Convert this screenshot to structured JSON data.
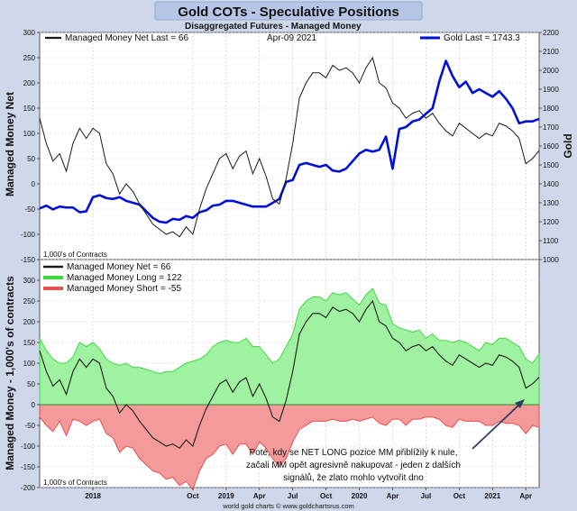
{
  "title": "Gold COTs - Speculative Positions",
  "subtitle_left": "Disaggregated Futures - Managed Money",
  "subtitle_date": "Apr-09  2021",
  "footer": "world gold charts © www.goldchartsrus.com",
  "colors": {
    "title_bg": "#b7c6e7",
    "frame": "#cfd8ea",
    "net": "#1a1a1a",
    "gold": "#0010d8",
    "long_fill": "#9ff29f",
    "long_line": "#3fd83f",
    "short_fill": "#f49a9a",
    "short_line": "#e85050",
    "arrow": "#2c3e60"
  },
  "chart_data": [
    {
      "type": "line",
      "title": "Managed Money Net vs Gold",
      "ylabel": "Managed Money Net",
      "y2label": "Gold",
      "ylim": [
        -150,
        300
      ],
      "y2lim": [
        1000,
        2200
      ],
      "yticks": [
        -150,
        -100,
        -50,
        0,
        50,
        100,
        150,
        200,
        250,
        300
      ],
      "y2ticks": [
        1000,
        1100,
        1200,
        1300,
        1400,
        1500,
        1600,
        1700,
        1800,
        1900,
        2000,
        2100,
        2200
      ],
      "units_note": "1,000's of Contracts",
      "legend_net": "Managed Money Net   Last = 66",
      "legend_gold": "Gold Last = 1743.3",
      "x_range": [
        2017.6,
        2021.35
      ],
      "series": [
        {
          "name": "Managed Money Net",
          "x": [
            2017.6,
            2017.65,
            2017.7,
            2017.75,
            2017.8,
            2017.85,
            2017.9,
            2017.95,
            2018.0,
            2018.05,
            2018.1,
            2018.15,
            2018.2,
            2018.25,
            2018.3,
            2018.35,
            2018.4,
            2018.45,
            2018.5,
            2018.55,
            2018.6,
            2018.65,
            2018.7,
            2018.75,
            2018.8,
            2018.85,
            2018.9,
            2018.95,
            2019.0,
            2019.05,
            2019.1,
            2019.15,
            2019.2,
            2019.25,
            2019.3,
            2019.35,
            2019.4,
            2019.45,
            2019.5,
            2019.55,
            2019.6,
            2019.65,
            2019.7,
            2019.75,
            2019.8,
            2019.85,
            2019.9,
            2019.95,
            2020.0,
            2020.05,
            2020.1,
            2020.15,
            2020.2,
            2020.25,
            2020.3,
            2020.35,
            2020.4,
            2020.45,
            2020.5,
            2020.55,
            2020.6,
            2020.65,
            2020.7,
            2020.75,
            2020.8,
            2020.85,
            2020.9,
            2020.95,
            2021.0,
            2021.05,
            2021.1,
            2021.15,
            2021.2,
            2021.25,
            2021.3,
            2021.35
          ],
          "values": [
            130,
            80,
            45,
            60,
            25,
            80,
            110,
            90,
            110,
            100,
            40,
            20,
            -20,
            0,
            -15,
            -40,
            -60,
            -80,
            -90,
            -100,
            -95,
            -105,
            -85,
            -100,
            -50,
            -10,
            20,
            50,
            60,
            30,
            55,
            65,
            20,
            50,
            15,
            -30,
            -40,
            10,
            80,
            170,
            200,
            220,
            220,
            210,
            235,
            225,
            230,
            220,
            200,
            230,
            250,
            200,
            190,
            160,
            150,
            130,
            140,
            145,
            130,
            140,
            120,
            105,
            95,
            120,
            110,
            100,
            90,
            100,
            95,
            120,
            115,
            105,
            90,
            40,
            50,
            66
          ]
        },
        {
          "name": "Gold",
          "axis": "right",
          "x": [
            2017.6,
            2017.65,
            2017.7,
            2017.75,
            2017.8,
            2017.85,
            2017.9,
            2017.95,
            2018.0,
            2018.05,
            2018.1,
            2018.15,
            2018.2,
            2018.25,
            2018.3,
            2018.35,
            2018.4,
            2018.45,
            2018.5,
            2018.55,
            2018.6,
            2018.65,
            2018.7,
            2018.75,
            2018.8,
            2018.85,
            2018.9,
            2018.95,
            2019.0,
            2019.05,
            2019.1,
            2019.15,
            2019.2,
            2019.25,
            2019.3,
            2019.35,
            2019.4,
            2019.45,
            2019.5,
            2019.55,
            2019.6,
            2019.65,
            2019.7,
            2019.75,
            2019.8,
            2019.85,
            2019.9,
            2019.95,
            2020.0,
            2020.05,
            2020.1,
            2020.15,
            2020.2,
            2020.25,
            2020.3,
            2020.35,
            2020.4,
            2020.45,
            2020.5,
            2020.55,
            2020.6,
            2020.65,
            2020.7,
            2020.75,
            2020.8,
            2020.85,
            2020.9,
            2020.95,
            2021.0,
            2021.05,
            2021.1,
            2021.15,
            2021.2,
            2021.25,
            2021.3,
            2021.35
          ],
          "values": [
            1270,
            1285,
            1265,
            1280,
            1275,
            1275,
            1250,
            1255,
            1330,
            1340,
            1325,
            1320,
            1330,
            1310,
            1300,
            1290,
            1255,
            1220,
            1200,
            1195,
            1215,
            1210,
            1230,
            1220,
            1250,
            1260,
            1285,
            1290,
            1310,
            1310,
            1300,
            1290,
            1280,
            1280,
            1280,
            1300,
            1320,
            1410,
            1420,
            1500,
            1510,
            1500,
            1490,
            1500,
            1470,
            1465,
            1480,
            1520,
            1560,
            1580,
            1570,
            1580,
            1650,
            1480,
            1690,
            1700,
            1730,
            1740,
            1770,
            1800,
            1940,
            2050,
            1970,
            1910,
            1940,
            1880,
            1900,
            1880,
            1860,
            1890,
            1850,
            1800,
            1720,
            1730,
            1730,
            1743.3
          ]
        }
      ]
    },
    {
      "type": "area",
      "title": "Managed Money Net / Long / Short",
      "ylabel": "Managed Money - 1,000's of contracts",
      "ylim": [
        -200,
        350
      ],
      "yticks": [
        -200,
        -150,
        -100,
        -50,
        0,
        50,
        100,
        150,
        200,
        250,
        300
      ],
      "units_note": "1,000's of Contracts",
      "legend": [
        "Managed Money Net      =  66",
        "Managed Money Long    =  122",
        "Managed Money Short    =  -55"
      ],
      "x_ticks": [
        2018,
        2018.75,
        2019,
        2019.25,
        2019.5,
        2019.75,
        2020,
        2020.25,
        2020.5,
        2020.75,
        2021,
        2021.25
      ],
      "x_tick_labels": [
        "2018",
        "Oct",
        "2019",
        "Apr",
        "Jul",
        "Oct",
        "2020",
        "Apr",
        "Jul",
        "Oct",
        "2021",
        "Apr"
      ],
      "x_range": [
        2017.6,
        2021.35
      ],
      "series": [
        {
          "name": "Managed Money Long",
          "x": [
            2017.6,
            2017.65,
            2017.7,
            2017.75,
            2017.8,
            2017.85,
            2017.9,
            2017.95,
            2018.0,
            2018.05,
            2018.1,
            2018.15,
            2018.2,
            2018.25,
            2018.3,
            2018.35,
            2018.4,
            2018.45,
            2018.5,
            2018.55,
            2018.6,
            2018.65,
            2018.7,
            2018.75,
            2018.8,
            2018.85,
            2018.9,
            2018.95,
            2019.0,
            2019.05,
            2019.1,
            2019.15,
            2019.2,
            2019.25,
            2019.3,
            2019.35,
            2019.4,
            2019.45,
            2019.5,
            2019.55,
            2019.6,
            2019.65,
            2019.7,
            2019.75,
            2019.8,
            2019.85,
            2019.9,
            2019.95,
            2020.0,
            2020.05,
            2020.1,
            2020.15,
            2020.2,
            2020.25,
            2020.3,
            2020.35,
            2020.4,
            2020.45,
            2020.5,
            2020.55,
            2020.6,
            2020.65,
            2020.7,
            2020.75,
            2020.8,
            2020.85,
            2020.9,
            2020.95,
            2021.0,
            2021.05,
            2021.1,
            2021.15,
            2021.2,
            2021.25,
            2021.3,
            2021.35
          ],
          "values": [
            160,
            130,
            110,
            100,
            100,
            115,
            150,
            140,
            150,
            135,
            110,
            100,
            95,
            100,
            90,
            90,
            85,
            80,
            75,
            80,
            80,
            90,
            100,
            105,
            110,
            120,
            140,
            150,
            155,
            150,
            150,
            160,
            140,
            140,
            120,
            100,
            110,
            140,
            170,
            230,
            250,
            260,
            260,
            250,
            270,
            265,
            270,
            255,
            240,
            265,
            280,
            245,
            240,
            195,
            185,
            180,
            175,
            180,
            160,
            170,
            155,
            155,
            150,
            155,
            150,
            140,
            130,
            150,
            145,
            160,
            160,
            150,
            140,
            110,
            100,
            122
          ]
        },
        {
          "name": "Managed Money Short",
          "x": [
            2017.6,
            2017.65,
            2017.7,
            2017.75,
            2017.8,
            2017.85,
            2017.9,
            2017.95,
            2018.0,
            2018.05,
            2018.1,
            2018.15,
            2018.2,
            2018.25,
            2018.3,
            2018.35,
            2018.4,
            2018.45,
            2018.5,
            2018.55,
            2018.6,
            2018.65,
            2018.7,
            2018.75,
            2018.8,
            2018.85,
            2018.9,
            2018.95,
            2019.0,
            2019.05,
            2019.1,
            2019.15,
            2019.2,
            2019.25,
            2019.3,
            2019.35,
            2019.4,
            2019.45,
            2019.5,
            2019.55,
            2019.6,
            2019.65,
            2019.7,
            2019.75,
            2019.8,
            2019.85,
            2019.9,
            2019.95,
            2020.0,
            2020.05,
            2020.1,
            2020.15,
            2020.2,
            2020.25,
            2020.3,
            2020.35,
            2020.4,
            2020.45,
            2020.5,
            2020.55,
            2020.6,
            2020.65,
            2020.7,
            2020.75,
            2020.8,
            2020.85,
            2020.9,
            2020.95,
            2021.0,
            2021.05,
            2021.1,
            2021.15,
            2021.2,
            2021.25,
            2021.3,
            2021.35
          ],
          "values": [
            -30,
            -50,
            -65,
            -40,
            -75,
            -35,
            -40,
            -50,
            -40,
            -35,
            -70,
            -80,
            -115,
            -100,
            -105,
            -130,
            -145,
            -160,
            -165,
            -180,
            -175,
            -195,
            -185,
            -205,
            -160,
            -130,
            -120,
            -100,
            -95,
            -120,
            -95,
            -95,
            -120,
            -90,
            -105,
            -130,
            -150,
            -130,
            -90,
            -60,
            -50,
            -40,
            -40,
            -40,
            -35,
            -40,
            -40,
            -35,
            -40,
            -35,
            -30,
            -45,
            -50,
            -35,
            -35,
            -50,
            -35,
            -35,
            -30,
            -30,
            -35,
            -50,
            -55,
            -35,
            -40,
            -40,
            -40,
            -50,
            -50,
            -40,
            -45,
            -45,
            -50,
            -70,
            -50,
            -55
          ]
        },
        {
          "name": "Managed Money Net",
          "x": [
            2017.6,
            2017.65,
            2017.7,
            2017.75,
            2017.8,
            2017.85,
            2017.9,
            2017.95,
            2018.0,
            2018.05,
            2018.1,
            2018.15,
            2018.2,
            2018.25,
            2018.3,
            2018.35,
            2018.4,
            2018.45,
            2018.5,
            2018.55,
            2018.6,
            2018.65,
            2018.7,
            2018.75,
            2018.8,
            2018.85,
            2018.9,
            2018.95,
            2019.0,
            2019.05,
            2019.1,
            2019.15,
            2019.2,
            2019.25,
            2019.3,
            2019.35,
            2019.4,
            2019.45,
            2019.5,
            2019.55,
            2019.6,
            2019.65,
            2019.7,
            2019.75,
            2019.8,
            2019.85,
            2019.9,
            2019.95,
            2020.0,
            2020.05,
            2020.1,
            2020.15,
            2020.2,
            2020.25,
            2020.3,
            2020.35,
            2020.4,
            2020.45,
            2020.5,
            2020.55,
            2020.6,
            2020.65,
            2020.7,
            2020.75,
            2020.8,
            2020.85,
            2020.9,
            2020.95,
            2021.0,
            2021.05,
            2021.1,
            2021.15,
            2021.2,
            2021.25,
            2021.3,
            2021.35
          ],
          "values": [
            130,
            80,
            45,
            60,
            25,
            80,
            110,
            90,
            110,
            100,
            40,
            20,
            -20,
            0,
            -15,
            -40,
            -60,
            -80,
            -90,
            -100,
            -95,
            -105,
            -85,
            -100,
            -50,
            -10,
            20,
            50,
            60,
            30,
            55,
            65,
            20,
            50,
            15,
            -30,
            -40,
            10,
            80,
            170,
            200,
            220,
            220,
            210,
            235,
            225,
            230,
            220,
            200,
            230,
            250,
            200,
            190,
            160,
            150,
            130,
            140,
            145,
            130,
            140,
            120,
            105,
            95,
            120,
            110,
            100,
            90,
            100,
            95,
            120,
            115,
            105,
            90,
            40,
            50,
            66
          ]
        }
      ],
      "annotation": {
        "lines": [
          "Poté, kdy se NET LONG pozice MM přiblížily k nule,",
          "začali MM opět agresivně nakupovat - jeden z dalších",
          "signálů, že zlato mohlo vytvořit dno"
        ]
      }
    }
  ]
}
